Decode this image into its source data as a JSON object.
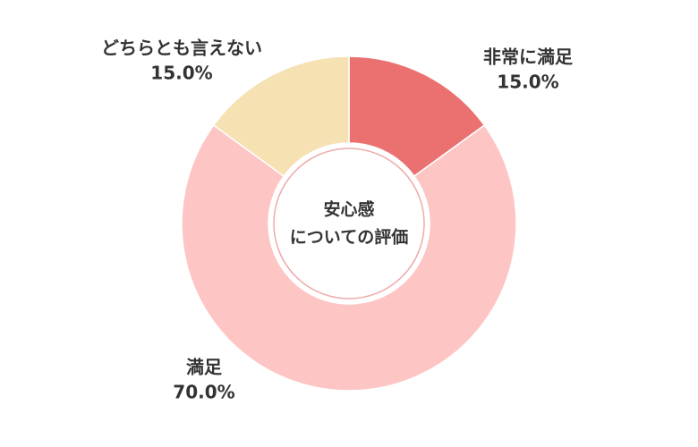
{
  "chart_data": {
    "type": "donut",
    "center_label": [
      "安心感",
      "についての評価"
    ],
    "categories": [
      "非常に満足",
      "満足",
      "どちらとも言えない"
    ],
    "values": [
      15,
      70,
      15
    ],
    "value_labels": [
      "15.0%",
      "70.0%",
      "15.0%"
    ],
    "colors": [
      "#eb7171",
      "#fec5c5",
      "#f5e1b2"
    ]
  }
}
